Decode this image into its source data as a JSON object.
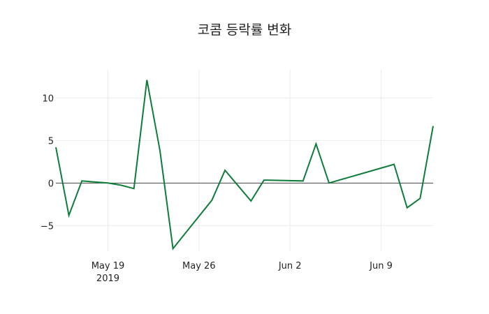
{
  "chart_data": {
    "type": "line",
    "title": "코콤 등락률 변화",
    "xlabel": "",
    "ylabel": "",
    "line_color": "#0e7c3a",
    "x": [
      "2019-05-15",
      "2019-05-16",
      "2019-05-17",
      "2019-05-19",
      "2019-05-20",
      "2019-05-21",
      "2019-05-22",
      "2019-05-23",
      "2019-05-24",
      "2019-05-27",
      "2019-05-28",
      "2019-05-30",
      "2019-05-31",
      "2019-06-03",
      "2019-06-04",
      "2019-06-05",
      "2019-06-10",
      "2019-06-11",
      "2019-06-12",
      "2019-06-13"
    ],
    "values": [
      4.2,
      -3.8,
      0.25,
      0.0,
      -0.25,
      -0.65,
      12.1,
      3.8,
      -7.7,
      -2.0,
      1.5,
      -2.1,
      0.35,
      0.25,
      4.6,
      0.0,
      2.2,
      -2.9,
      -1.8,
      6.7
    ],
    "x_ticks": [
      {
        "date": "2019-05-19",
        "label": "May 19",
        "sublabel": "2019"
      },
      {
        "date": "2019-05-26",
        "label": "May 26",
        "sublabel": ""
      },
      {
        "date": "2019-06-02",
        "label": "Jun 2",
        "sublabel": ""
      },
      {
        "date": "2019-06-09",
        "label": "Jun 9",
        "sublabel": ""
      }
    ],
    "y_ticks": [
      10,
      5,
      0,
      -5
    ],
    "y_tick_labels": [
      "10",
      "5",
      "0",
      "−5"
    ],
    "ylim": [
      -8.0,
      13.3
    ],
    "xlim": [
      "2019-05-15",
      "2019-06-13"
    ],
    "grid": true,
    "zero_line": true,
    "legend": false
  }
}
